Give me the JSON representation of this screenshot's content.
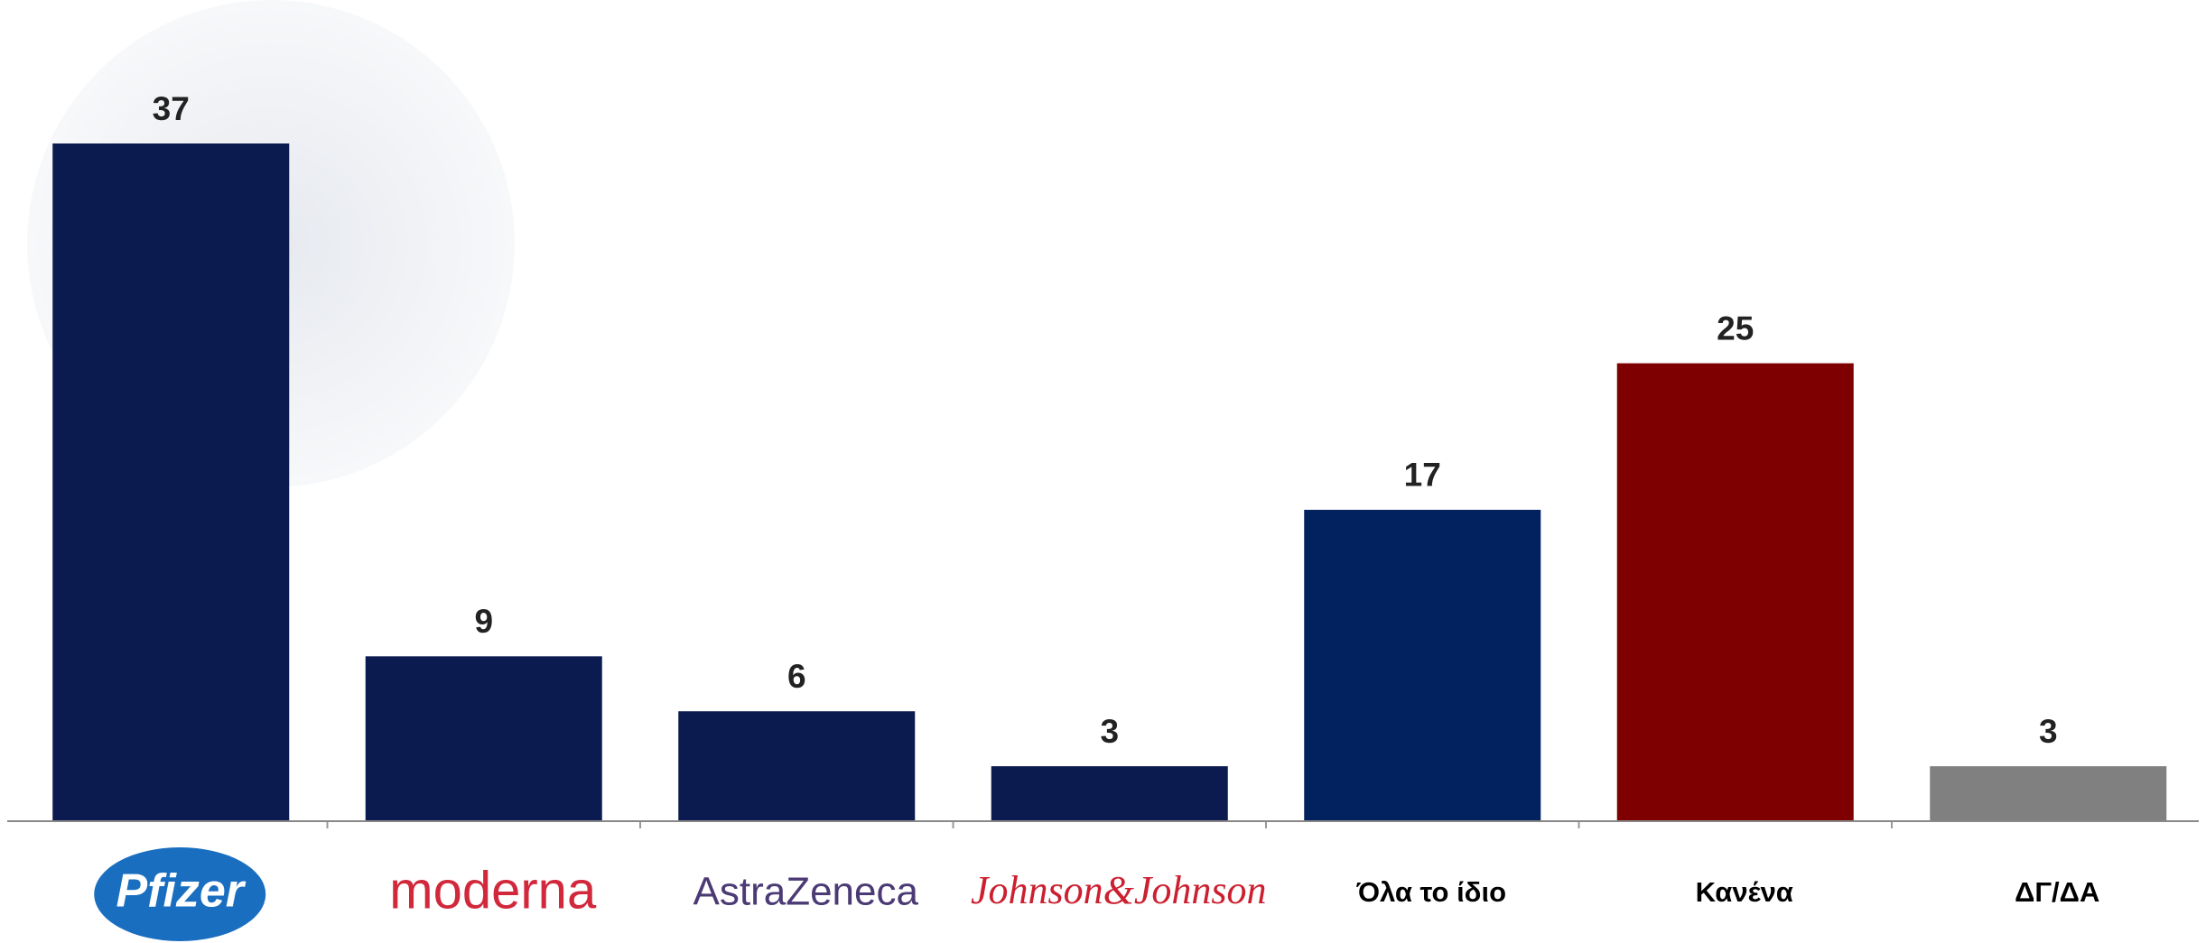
{
  "chart_data": {
    "type": "bar",
    "categories": [
      "Pfizer",
      "moderna",
      "AstraZeneca",
      "Johnson&Johnson",
      "Όλα το ίδιο",
      "Κανένα",
      "ΔΓ/ΔΑ"
    ],
    "values": [
      37,
      9,
      6,
      3,
      17,
      25,
      3
    ],
    "colors": [
      "#0b1a4f",
      "#0b1a4f",
      "#0b1a4f",
      "#0b1a4f",
      "#02215f",
      "#7f0000",
      "#808080"
    ]
  }
}
